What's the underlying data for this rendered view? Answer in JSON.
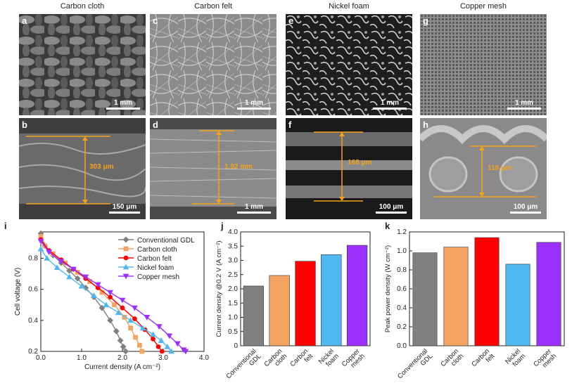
{
  "columns": [
    "Carbon cloth",
    "Carbon felt",
    "Nickel foam",
    "Copper mesh"
  ],
  "top_panels": [
    {
      "letter": "a",
      "scale": "1 mm"
    },
    {
      "letter": "c",
      "scale": "1 mm"
    },
    {
      "letter": "e",
      "scale": "1 mm"
    },
    {
      "letter": "g",
      "scale": "1 mm"
    }
  ],
  "bottom_panels": [
    {
      "letter": "b",
      "scale": "150 μm",
      "thickness": "303 μm"
    },
    {
      "letter": "d",
      "scale": "1 mm",
      "thickness": "1.92 mm"
    },
    {
      "letter": "f",
      "scale": "100 μm",
      "thickness": "168 μm"
    },
    {
      "letter": "h",
      "scale": "100 μm",
      "thickness": "118 μm"
    }
  ],
  "panel_i": {
    "letter": "i",
    "xlabel": "Current density (A cm⁻²)",
    "ylabel": "Cell voltage (V)",
    "xticks": [
      "0.0",
      "1.0",
      "2.0",
      "3.0",
      "4.0"
    ],
    "yticks": [
      "0.2",
      "0.4",
      "0.6",
      "0.8"
    ]
  },
  "panel_j": {
    "letter": "j",
    "ylabel": "Current density @0.2 V (A cm⁻²)",
    "yticks": [
      "0",
      "0.5",
      "1.0",
      "1.5",
      "2.0",
      "2.5",
      "3.0",
      "3.5",
      "4.0"
    ],
    "xlabels": [
      [
        "Conventional",
        "GDL"
      ],
      [
        "Carbon",
        "cloth"
      ],
      [
        "Carbon",
        "felt"
      ],
      [
        "Nickel",
        "foam"
      ],
      [
        "Copper",
        "mesh"
      ]
    ]
  },
  "panel_k": {
    "letter": "k",
    "ylabel": "Peak power density (W cm⁻²)",
    "yticks": [
      "0.0",
      "0.2",
      "0.4",
      "0.6",
      "0.8",
      "1.0",
      "1.2"
    ],
    "xlabels": [
      [
        "Conventional",
        "GDL"
      ],
      [
        "Carbon",
        "cloth"
      ],
      [
        "Carbon",
        "felt"
      ],
      [
        "Nickel",
        "foam"
      ],
      [
        "Copper",
        "mesh"
      ]
    ]
  },
  "colors": {
    "gdl": "#808080",
    "cloth": "#f4a460",
    "felt": "#ff0000",
    "nickel": "#4fb8f0",
    "copper": "#9b30ff",
    "accent": "#f5a31a"
  },
  "chart_data": [
    {
      "type": "scatter",
      "xlabel": "Current density (A cm⁻²)",
      "ylabel": "Cell voltage (V)",
      "xlim": [
        0,
        4
      ],
      "ylim": [
        0.2,
        0.97
      ],
      "legend_position": "top-right",
      "series": [
        {
          "name": "Conventional GDL",
          "marker": "diamond",
          "x": [
            0.0,
            0.1,
            0.3,
            0.5,
            0.7,
            0.9,
            1.1,
            1.3,
            1.5,
            1.7,
            1.85,
            1.95,
            2.02,
            2.08
          ],
          "y": [
            0.96,
            0.88,
            0.82,
            0.77,
            0.72,
            0.67,
            0.61,
            0.55,
            0.48,
            0.4,
            0.33,
            0.27,
            0.23,
            0.2
          ]
        },
        {
          "name": "Carbon cloth",
          "marker": "square",
          "x": [
            0.0,
            0.1,
            0.3,
            0.6,
            0.9,
            1.2,
            1.5,
            1.8,
            2.05,
            2.2,
            2.32,
            2.42,
            2.48
          ],
          "y": [
            0.94,
            0.88,
            0.83,
            0.77,
            0.71,
            0.65,
            0.58,
            0.5,
            0.42,
            0.35,
            0.29,
            0.24,
            0.2
          ]
        },
        {
          "name": "Carbon felt",
          "marker": "circle",
          "x": [
            0.0,
            0.2,
            0.5,
            0.8,
            1.1,
            1.4,
            1.7,
            2.0,
            2.3,
            2.55,
            2.75,
            2.88,
            2.97
          ],
          "y": [
            0.92,
            0.85,
            0.79,
            0.73,
            0.67,
            0.61,
            0.55,
            0.48,
            0.41,
            0.34,
            0.28,
            0.23,
            0.2
          ]
        },
        {
          "name": "Nickel foam",
          "marker": "triangle-up",
          "x": [
            0.0,
            0.15,
            0.4,
            0.7,
            1.0,
            1.3,
            1.6,
            1.9,
            2.2,
            2.5,
            2.75,
            2.95,
            3.1,
            3.2
          ],
          "y": [
            0.86,
            0.8,
            0.74,
            0.68,
            0.62,
            0.56,
            0.5,
            0.45,
            0.4,
            0.35,
            0.31,
            0.27,
            0.23,
            0.2
          ]
        },
        {
          "name": "Copper mesh",
          "marker": "triangle-down",
          "x": [
            0.0,
            0.2,
            0.5,
            0.8,
            1.1,
            1.4,
            1.7,
            2.0,
            2.3,
            2.6,
            2.9,
            3.15,
            3.35,
            3.5,
            3.55
          ],
          "y": [
            0.91,
            0.84,
            0.78,
            0.73,
            0.68,
            0.63,
            0.58,
            0.53,
            0.48,
            0.42,
            0.36,
            0.3,
            0.25,
            0.21,
            0.2
          ]
        }
      ]
    },
    {
      "type": "bar",
      "categories": [
        "Conventional GDL",
        "Carbon cloth",
        "Carbon felt",
        "Nickel foam",
        "Copper mesh"
      ],
      "values": [
        2.1,
        2.47,
        2.97,
        3.2,
        3.53
      ],
      "ylabel": "Current density @0.2 V (A cm⁻²)",
      "ylim": [
        0,
        4.0
      ]
    },
    {
      "type": "bar",
      "categories": [
        "Conventional GDL",
        "Carbon cloth",
        "Carbon felt",
        "Nickel foam",
        "Copper mesh"
      ],
      "values": [
        0.98,
        1.04,
        1.14,
        0.86,
        1.09
      ],
      "ylabel": "Peak power density (W cm⁻²)",
      "ylim": [
        0,
        1.2
      ]
    }
  ]
}
